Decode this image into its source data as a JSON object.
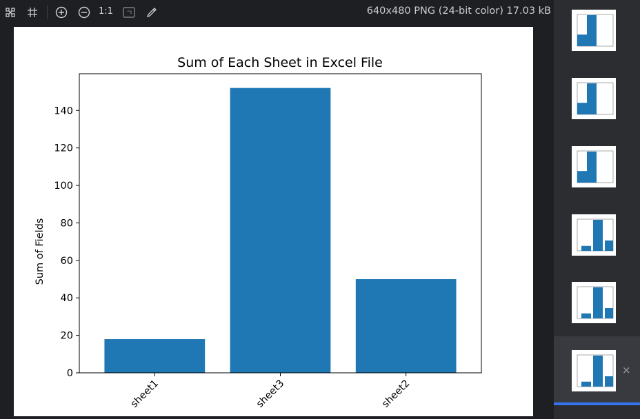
{
  "toolbar": {
    "tools": [
      {
        "name": "fit-to-window-icon"
      },
      {
        "name": "grid-icon"
      },
      {
        "name": "zoom-in-icon"
      },
      {
        "name": "zoom-out-icon"
      },
      {
        "name": "actual-size"
      },
      {
        "name": "background-icon"
      },
      {
        "name": "color-picker-icon"
      }
    ],
    "zoom_label": "1:1",
    "image_info": "640x480 PNG (24-bit color) 17.03 kB"
  },
  "chart_data": {
    "type": "bar",
    "title": "Sum of Each Sheet in Excel File",
    "xlabel": "",
    "ylabel": "Sum of Fields",
    "categories": [
      "sheet1",
      "sheet3",
      "sheet2"
    ],
    "values": [
      18,
      152,
      50
    ],
    "ylim": [
      0,
      159.6
    ],
    "yticks": [
      0,
      20,
      40,
      60,
      80,
      100,
      120,
      140
    ],
    "bar_color": "#1f77b4",
    "grid": false,
    "xtick_rotation": 45
  },
  "thumbnails": {
    "count": 6,
    "selected_index": 5,
    "close_glyph": "×"
  }
}
